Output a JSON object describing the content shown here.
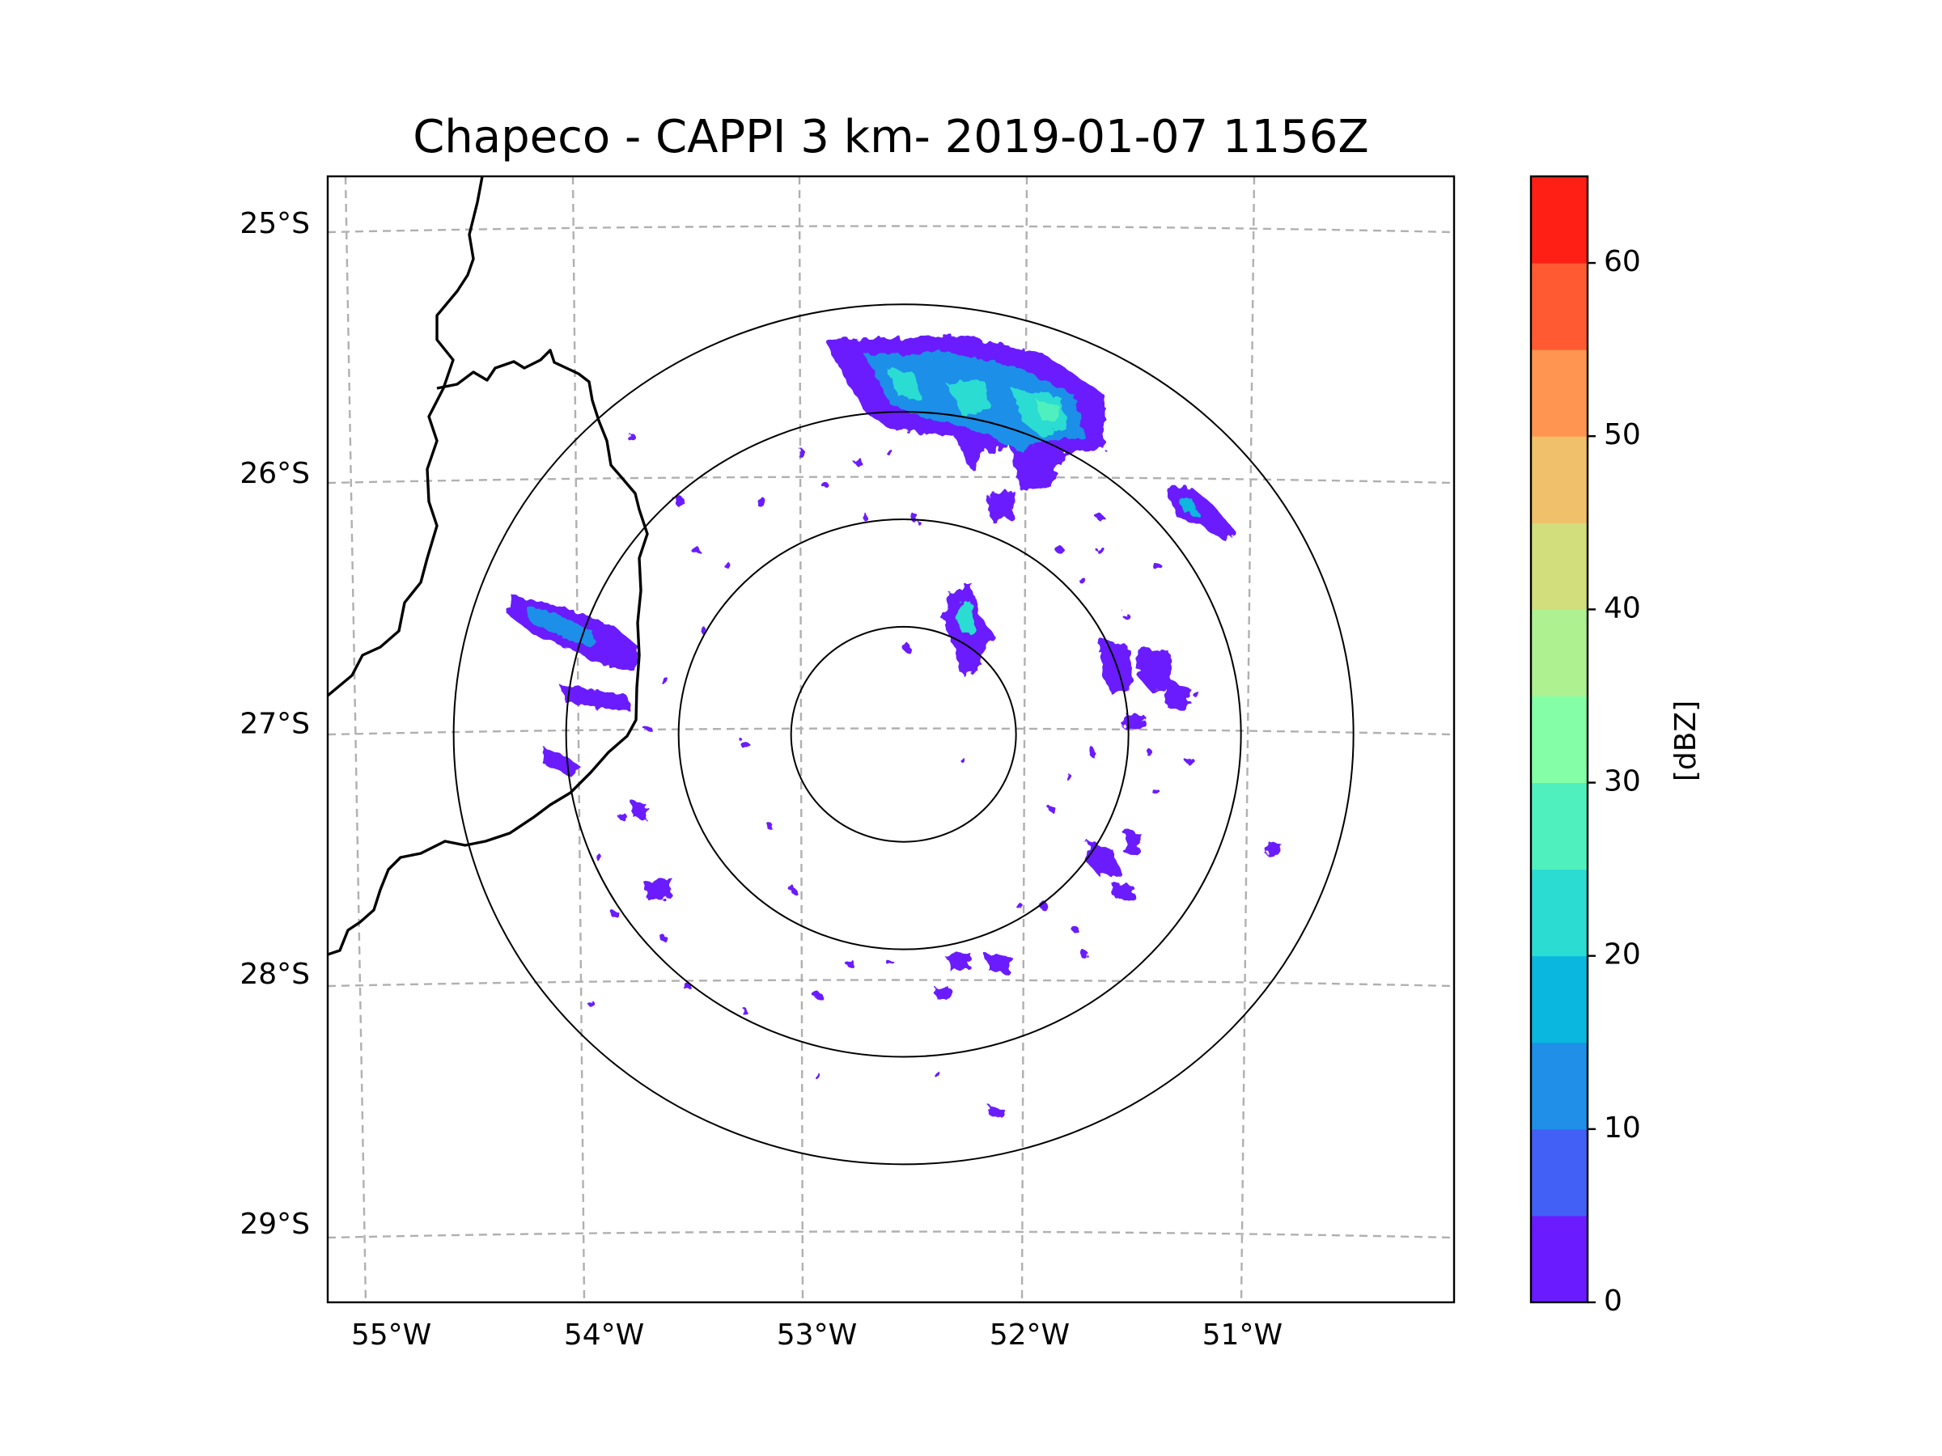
{
  "chart_data": {
    "type": "heatmap",
    "title": "Chapeco - CAPPI 3 km- 2019-01-07 1156Z",
    "projection": "radar map (lat/lon)",
    "x_ticks": [
      "55°W",
      "54°W",
      "53°W",
      "52°W",
      "51°W"
    ],
    "y_ticks": [
      "25°S",
      "26°S",
      "27°S",
      "28°S",
      "29°S"
    ],
    "lon_values": [
      -55,
      -54,
      -53,
      -52,
      -51
    ],
    "lat_values": [
      -25,
      -26,
      -27,
      -28,
      -29
    ],
    "lon_range": [
      -55.2,
      -50.1
    ],
    "lat_range": [
      -29.3,
      -24.8
    ],
    "radar_center": {
      "lon": -52.6,
      "lat": -27.03
    },
    "range_rings_km": [
      50,
      100,
      150,
      200
    ],
    "gridlines": true,
    "colorbar": {
      "label": "[dBZ]",
      "min": 0,
      "max": 65,
      "levels": [
        0,
        5,
        10,
        15,
        20,
        25,
        30,
        35,
        40,
        45,
        50,
        55,
        60,
        65
      ],
      "tick_values": [
        0,
        10,
        20,
        30,
        40,
        50,
        60
      ],
      "tick_labels": [
        "0",
        "10",
        "20",
        "30",
        "40",
        "50",
        "60"
      ],
      "colors": [
        "#6a1bff",
        "#4260f5",
        "#1f8fe8",
        "#0ab7de",
        "#2bdcd2",
        "#50f0be",
        "#84ffa8",
        "#aef190",
        "#d2dd7b",
        "#f0c06a",
        "#ff9550",
        "#ff5a32",
        "#ff1f14"
      ]
    },
    "echoes": [
      {
        "region": "north band",
        "lon_center": -52.0,
        "lat_center": -25.75,
        "dbz_max": 30
      },
      {
        "region": "northeast cell",
        "lon_center": -51.3,
        "lat_center": -26.1,
        "dbz_max": 15
      },
      {
        "region": "central cell",
        "lon_center": -52.3,
        "lat_center": -26.55,
        "dbz_max": 20
      },
      {
        "region": "west band",
        "lon_center": -54.2,
        "lat_center": -26.65,
        "dbz_max": 10
      },
      {
        "region": "southeast cells",
        "lon_center": -51.55,
        "lat_center": -27.5,
        "dbz_max": 10
      }
    ]
  }
}
